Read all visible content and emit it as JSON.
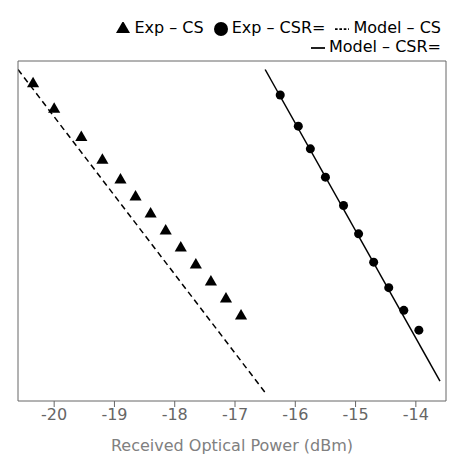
{
  "chart_data": {
    "type": "scatter",
    "xlabel": "Received Optical Power (dBm)",
    "xlim": [
      -20.6,
      -13.5
    ],
    "xticks": [
      -20,
      -19,
      -18,
      -17,
      -16,
      -15,
      -14
    ],
    "ylim": [
      -0.15,
      1.05
    ],
    "tick_labels": "x",
    "grid": false,
    "legend": "top",
    "series": [
      {
        "name": "Exp – CSR=",
        "type": "scatter",
        "marker": "circle",
        "color": "#000000",
        "x": [
          -16.25,
          -15.95,
          -15.75,
          -15.5,
          -15.2,
          -14.95,
          -14.7,
          -14.45,
          -14.2,
          -13.95
        ],
        "values": [
          0.93,
          0.82,
          0.74,
          0.64,
          0.54,
          0.44,
          0.34,
          0.25,
          0.17,
          0.1
        ]
      },
      {
        "name": "Model – CSR=",
        "type": "line",
        "line_style": "solid",
        "color": "#000000",
        "x": [
          -16.5,
          -13.6
        ],
        "values": [
          1.02,
          -0.08
        ]
      },
      {
        "name": "Exp – CS",
        "type": "scatter",
        "marker": "triangle",
        "color": "#000000",
        "x": [
          -20.35,
          -20.0,
          -19.55,
          -19.2,
          -18.9,
          -18.65,
          -18.4,
          -18.15,
          -17.9,
          -17.65,
          -17.4,
          -17.15,
          -16.9
        ],
        "values": [
          0.97,
          0.88,
          0.78,
          0.7,
          0.63,
          0.57,
          0.51,
          0.45,
          0.39,
          0.33,
          0.27,
          0.21,
          0.15
        ]
      },
      {
        "name": "Model – CS",
        "type": "line",
        "line_style": "dashed",
        "color": "#000000",
        "x": [
          -20.6,
          -16.5
        ],
        "values": [
          1.02,
          -0.12
        ]
      }
    ]
  }
}
